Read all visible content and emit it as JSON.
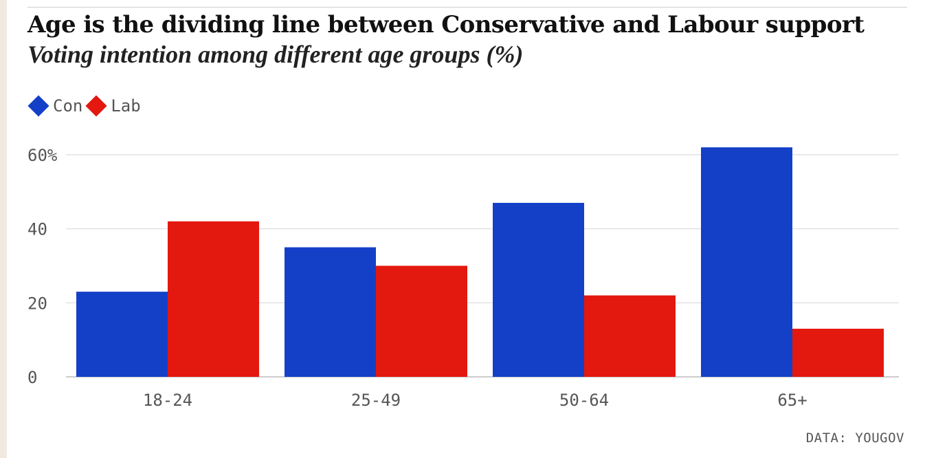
{
  "header": {
    "title": "Age is the dividing line between Conservative and Labour support",
    "subtitle": "Voting intention among different age groups (%)"
  },
  "legend": [
    {
      "label": "Con",
      "color": "#1440c8"
    },
    {
      "label": "Lab",
      "color": "#e3180f"
    }
  ],
  "source": "DATA: YOUGOV",
  "chart_data": {
    "type": "bar",
    "title": "Age is the dividing line between Conservative and Labour support",
    "subtitle": "Voting intention among different age groups (%)",
    "categories": [
      "18-24",
      "25-49",
      "50-64",
      "65+"
    ],
    "series": [
      {
        "name": "Con",
        "color": "#1440c8",
        "values": [
          23,
          35,
          47,
          62
        ]
      },
      {
        "name": "Lab",
        "color": "#e3180f",
        "values": [
          42,
          30,
          22,
          13
        ]
      }
    ],
    "ylim": [
      0,
      60
    ],
    "yticks": [
      0,
      20,
      40,
      60
    ],
    "ytick_labels": [
      "0",
      "20",
      "40",
      "60%"
    ],
    "xlabel": "",
    "ylabel": "",
    "grid": true,
    "legend_position": "top-left"
  }
}
